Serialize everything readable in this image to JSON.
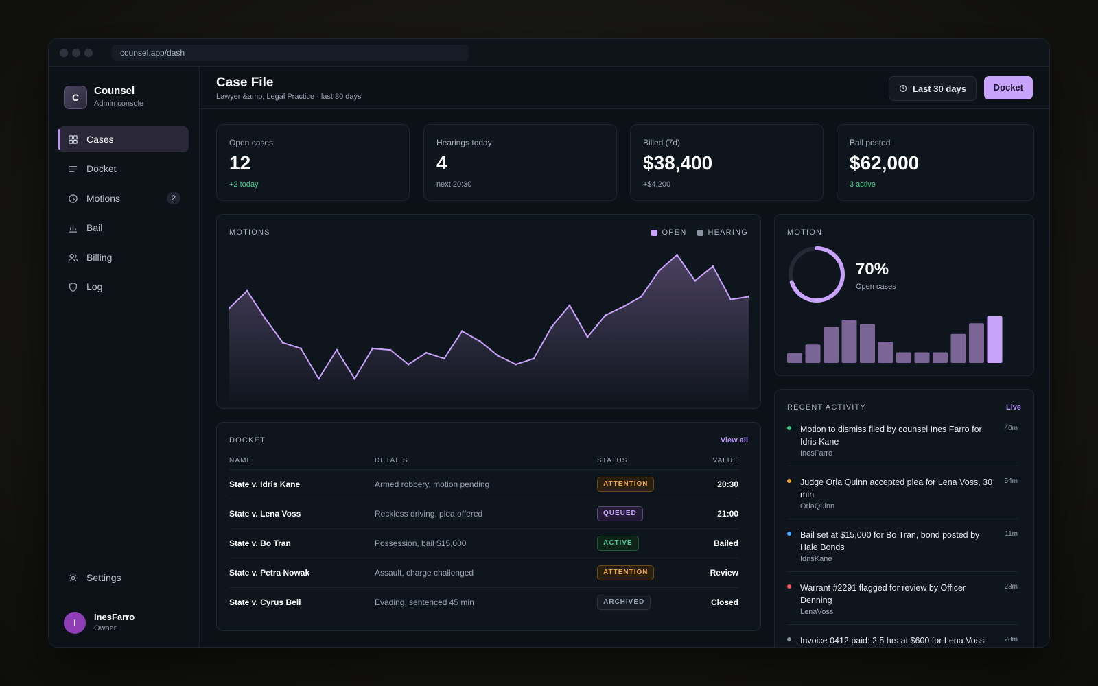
{
  "window": {
    "url": "counsel.app/dash"
  },
  "brand": {
    "logo_letter": "C",
    "name": "Counsel",
    "subtitle": "Admin console"
  },
  "sidebar": {
    "items": [
      {
        "label": "Cases",
        "icon": "grid-icon",
        "active": true
      },
      {
        "label": "Docket",
        "icon": "list-icon"
      },
      {
        "label": "Motions",
        "icon": "clock-icon",
        "badge": "2"
      },
      {
        "label": "Bail",
        "icon": "bar-chart-icon"
      },
      {
        "label": "Billing",
        "icon": "users-icon"
      },
      {
        "label": "Log",
        "icon": "shield-icon"
      }
    ],
    "settings_label": "Settings",
    "user": {
      "initial": "I",
      "name": "InesFarro",
      "role": "Owner"
    }
  },
  "header": {
    "title": "Case File",
    "subtitle": "Lawyer &amp; Legal Practice · last 30 days",
    "range_label": "Last 30 days",
    "docket_label": "Docket"
  },
  "kpis": [
    {
      "label": "Open cases",
      "value": "12",
      "delta": "+2 today",
      "delta_tone": "green"
    },
    {
      "label": "Hearings today",
      "value": "4",
      "delta": "next 20:30",
      "delta_tone": "muted"
    },
    {
      "label": "Billed (7d)",
      "value": "$38,400",
      "delta": "+$4,200",
      "delta_tone": "muted"
    },
    {
      "label": "Bail posted",
      "value": "$62,000",
      "delta": "3 active",
      "delta_tone": "green"
    }
  ],
  "motions_chart": {
    "title": "MOTIONS",
    "legend": [
      {
        "name": "OPEN",
        "color": "#c9a3fb"
      },
      {
        "name": "HEARING",
        "color": "#8b93a0"
      }
    ]
  },
  "chart_data": {
    "type": "area",
    "x": [
      1,
      2,
      3,
      4,
      5,
      6,
      7,
      8,
      9,
      10,
      11,
      12,
      13,
      14,
      15,
      16,
      17,
      18,
      19,
      20,
      21,
      22,
      23,
      24,
      25,
      26,
      27,
      28,
      29,
      30
    ],
    "series": [
      {
        "name": "OPEN",
        "values": [
          58,
          70,
          51,
          34,
          30,
          9,
          29,
          9,
          30,
          29,
          19,
          27,
          23,
          42,
          35,
          25,
          19,
          23,
          45,
          60,
          38,
          53,
          59,
          66,
          84,
          95,
          77,
          87,
          64,
          66
        ]
      }
    ],
    "ylim": [
      0,
      100
    ]
  },
  "motion_panel": {
    "title": "MOTION",
    "percent_value": 70,
    "percent_label": "70%",
    "caption": "Open cases",
    "bars": [
      14,
      26,
      51,
      61,
      55,
      30,
      15,
      15,
      15,
      41,
      56,
      66
    ],
    "bar_color": "#7b6496",
    "highlight_color": "#c9a3fb"
  },
  "docket": {
    "title": "DOCKET",
    "view_all": "View all",
    "columns": [
      "NAME",
      "DETAILS",
      "STATUS",
      "VALUE"
    ],
    "rows": [
      {
        "name": "State v. Idris Kane",
        "details": "Armed robbery, motion pending",
        "status": "ATTENTION",
        "status_kind": "attention",
        "value": "20:30"
      },
      {
        "name": "State v. Lena Voss",
        "details": "Reckless driving, plea offered",
        "status": "QUEUED",
        "status_kind": "queued",
        "value": "21:00"
      },
      {
        "name": "State v. Bo Tran",
        "details": "Possession, bail $15,000",
        "status": "ACTIVE",
        "status_kind": "active",
        "value": "Bailed"
      },
      {
        "name": "State v. Petra Nowak",
        "details": "Assault, charge challenged",
        "status": "ATTENTION",
        "status_kind": "attention",
        "value": "Review"
      },
      {
        "name": "State v. Cyrus Bell",
        "details": "Evading, sentenced 45 min",
        "status": "ARCHIVED",
        "status_kind": "archived",
        "value": "Closed"
      }
    ]
  },
  "activity": {
    "title": "RECENT ACTIVITY",
    "live_label": "Live",
    "items": [
      {
        "text": "Motion to dismiss filed by counsel Ines Farro for Idris Kane",
        "user": "InesFarro",
        "time": "40m",
        "color": "#3ecf8e"
      },
      {
        "text": "Judge Orla Quinn accepted plea for Lena Voss, 30 min",
        "user": "OrlaQuinn",
        "time": "54m",
        "color": "#f0a83a"
      },
      {
        "text": "Bail set at $15,000 for Bo Tran, bond posted by Hale Bonds",
        "user": "IdrisKane",
        "time": "11m",
        "color": "#4aa3ff"
      },
      {
        "text": "Warrant #2291 flagged for review by Officer Denning",
        "user": "LenaVoss",
        "time": "28m",
        "color": "#f25c5c"
      },
      {
        "text": "Invoice 0412 paid: 2.5 hrs at $600 for Lena Voss",
        "user": "",
        "time": "28m",
        "color": "#8b93a0"
      }
    ]
  }
}
